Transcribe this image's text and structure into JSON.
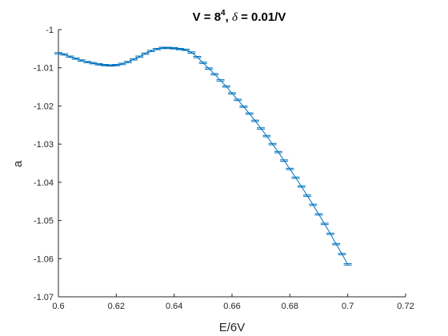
{
  "chart_data": {
    "type": "line",
    "title_parts": {
      "v_prefix": "V = 8",
      "v_exponent": "4",
      "separator": ", ",
      "delta_symbol": "δ",
      "delta_suffix": " = 0.01/V"
    },
    "xlabel": "E/6V",
    "ylabel": "a",
    "xlim": [
      0.6,
      0.72
    ],
    "ylim": [
      -1.07,
      -1.0
    ],
    "xticks": [
      "0.6",
      "0.62",
      "0.64",
      "0.66",
      "0.68",
      "0.7",
      "0.72"
    ],
    "yticks": [
      "-1",
      "-1.01",
      "-1.02",
      "-1.03",
      "-1.04",
      "-1.05",
      "-1.06",
      "-1.07"
    ],
    "color": "#0072BD",
    "errorbar_halfwidth": 0.00018,
    "x": [
      0.6,
      0.602,
      0.604,
      0.606,
      0.608,
      0.61,
      0.612,
      0.614,
      0.616,
      0.618,
      0.62,
      0.622,
      0.624,
      0.626,
      0.628,
      0.63,
      0.632,
      0.634,
      0.636,
      0.638,
      0.64,
      0.642,
      0.644,
      0.646,
      0.648,
      0.65,
      0.652,
      0.654,
      0.656,
      0.658,
      0.66,
      0.662,
      0.664,
      0.666,
      0.668,
      0.67,
      0.672,
      0.674,
      0.676,
      0.678,
      0.68,
      0.682,
      0.684,
      0.686,
      0.688,
      0.69,
      0.692,
      0.694,
      0.696,
      0.698,
      0.7
    ],
    "y": [
      -1.0062,
      -1.0065,
      -1.0071,
      -1.0076,
      -1.0081,
      -1.0085,
      -1.0088,
      -1.0091,
      -1.0093,
      -1.0094,
      -1.0093,
      -1.009,
      -1.0085,
      -1.0078,
      -1.0071,
      -1.0063,
      -1.0056,
      -1.0051,
      -1.0048,
      -1.0048,
      -1.0049,
      -1.0051,
      -1.0053,
      -1.006,
      -1.0072,
      -1.0087,
      -1.0102,
      -1.0117,
      -1.0133,
      -1.0149,
      -1.0167,
      -1.0184,
      -1.0202,
      -1.022,
      -1.0239,
      -1.0259,
      -1.0279,
      -1.03,
      -1.0321,
      -1.0343,
      -1.0365,
      -1.0388,
      -1.0411,
      -1.0435,
      -1.0459,
      -1.0484,
      -1.0509,
      -1.0535,
      -1.0562,
      -1.0588,
      -1.0615
    ]
  }
}
